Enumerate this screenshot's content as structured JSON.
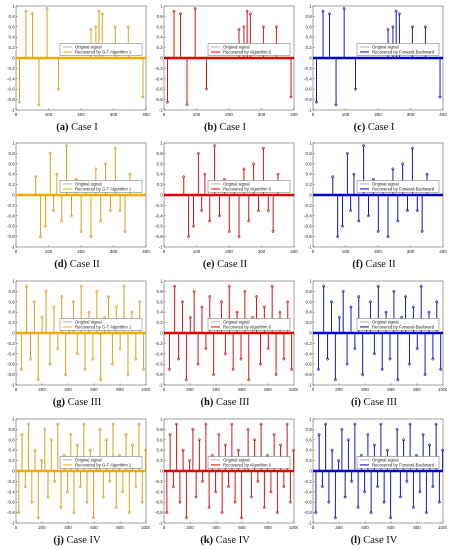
{
  "colors": {
    "original": "#808080",
    "case_colors": [
      "#f0ad00",
      "#e10000",
      "#0000cc"
    ]
  },
  "figure": {
    "columns": 3,
    "rows": 4,
    "legend_original": "Original signal",
    "legend_recovered": [
      "Recovered by G-T Algorithm 1",
      "Recovered by Algorithm 6",
      "Recovered by Forward-Backward"
    ]
  },
  "panels": [
    {
      "letter": "(a)",
      "case": "Case I"
    },
    {
      "letter": "(b)",
      "case": "Case I"
    },
    {
      "letter": "(c)",
      "case": "Case I"
    },
    {
      "letter": "(d)",
      "case": "Case II"
    },
    {
      "letter": "(e)",
      "case": "Case II"
    },
    {
      "letter": "(f)",
      "case": "Case II"
    },
    {
      "letter": "(g)",
      "case": "Case III"
    },
    {
      "letter": "(h)",
      "case": "Case III"
    },
    {
      "letter": "(i)",
      "case": "Case III"
    },
    {
      "letter": "(j)",
      "case": "Case IV"
    },
    {
      "letter": "(k)",
      "case": "Case IV"
    },
    {
      "letter": "(l)",
      "case": "Case IV"
    }
  ],
  "chart_data": [
    {
      "type": "stem",
      "row": 0,
      "xlim": [
        0,
        400
      ],
      "ylim": [
        -1,
        1
      ],
      "xticks": [
        0,
        100,
        200,
        300,
        400
      ],
      "yticks": [
        -1,
        -0.8,
        -0.6,
        -0.4,
        -0.2,
        0,
        0.2,
        0.4,
        0.6,
        0.8,
        1
      ],
      "ytick_labels": [
        "-1",
        "-0.8",
        "-0.6",
        "-0.4",
        "-0.2",
        "0",
        "0.2",
        "0.4",
        "0.6",
        "0.8",
        "1"
      ],
      "spikes": [
        [
          10,
          -0.85
        ],
        [
          30,
          0.9
        ],
        [
          50,
          0.85
        ],
        [
          70,
          -0.9
        ],
        [
          95,
          0.95
        ],
        [
          130,
          -0.6
        ],
        [
          230,
          0.55
        ],
        [
          245,
          0.6
        ],
        [
          255,
          0.9
        ],
        [
          265,
          0.85
        ],
        [
          305,
          0.6
        ],
        [
          345,
          0.6
        ],
        [
          390,
          -0.75
        ]
      ]
    },
    {
      "type": "stem",
      "row": 1,
      "xlim": [
        0,
        400
      ],
      "ylim": [
        -1,
        1
      ],
      "xticks": [
        0,
        100,
        200,
        300,
        400
      ],
      "yticks": [
        -1,
        -0.8,
        -0.6,
        -0.4,
        -0.2,
        0,
        0.2,
        0.4,
        0.6,
        0.8,
        1
      ],
      "ytick_labels": [
        "-1",
        "-0.8",
        "-0.6",
        "-0.4",
        "-0.2",
        "0",
        "0.2",
        "0.4",
        "0.6",
        "0.8",
        "1"
      ],
      "spikes": [
        [
          60,
          0.35
        ],
        [
          75,
          -0.8
        ],
        [
          90,
          -0.6
        ],
        [
          105,
          0.8
        ],
        [
          115,
          -0.3
        ],
        [
          125,
          0.4
        ],
        [
          140,
          -0.5
        ],
        [
          155,
          0.95
        ],
        [
          170,
          -0.4
        ],
        [
          185,
          0.3
        ],
        [
          200,
          -0.7
        ],
        [
          215,
          0.2
        ],
        [
          230,
          -0.8
        ],
        [
          245,
          0.5
        ],
        [
          260,
          -0.5
        ],
        [
          275,
          0.6
        ],
        [
          290,
          -0.3
        ],
        [
          305,
          0.9
        ],
        [
          320,
          -0.3
        ],
        [
          335,
          -0.7
        ],
        [
          350,
          0.4
        ]
      ]
    },
    {
      "type": "stem",
      "row": 2,
      "xlim": [
        0,
        1000
      ],
      "ylim": [
        -1,
        1
      ],
      "xticks": [
        0,
        200,
        400,
        600,
        800,
        1000
      ],
      "yticks": [
        -1,
        -0.8,
        -0.6,
        -0.4,
        -0.2,
        0,
        0.2,
        0.4,
        0.6,
        0.8,
        1
      ],
      "ytick_labels": [
        "-1",
        "-0.8",
        "-0.6",
        "-0.4",
        "-0.2",
        "0",
        "0.2",
        "0.4",
        "0.6",
        "0.8",
        "1"
      ],
      "spikes": [
        [
          40,
          -0.7
        ],
        [
          80,
          0.9
        ],
        [
          110,
          -0.5
        ],
        [
          140,
          0.6
        ],
        [
          170,
          -0.9
        ],
        [
          200,
          0.3
        ],
        [
          230,
          0.8
        ],
        [
          260,
          -0.6
        ],
        [
          290,
          0.5
        ],
        [
          320,
          -0.3
        ],
        [
          350,
          0.7
        ],
        [
          380,
          -0.8
        ],
        [
          410,
          0.2
        ],
        [
          440,
          0.6
        ],
        [
          470,
          -0.4
        ],
        [
          500,
          0.9
        ],
        [
          530,
          -0.7
        ],
        [
          560,
          0.4
        ],
        [
          590,
          -0.5
        ],
        [
          620,
          0.8
        ],
        [
          650,
          -0.9
        ],
        [
          680,
          0.3
        ],
        [
          710,
          0.7
        ],
        [
          740,
          -0.6
        ],
        [
          770,
          0.5
        ],
        [
          800,
          -0.3
        ],
        [
          830,
          0.9
        ],
        [
          860,
          -0.8
        ],
        [
          890,
          0.4
        ],
        [
          920,
          -0.5
        ],
        [
          950,
          0.6
        ],
        [
          980,
          -0.7
        ]
      ]
    },
    {
      "type": "stem",
      "row": 3,
      "xlim": [
        0,
        1000
      ],
      "ylim": [
        -1,
        1
      ],
      "xticks": [
        0,
        200,
        400,
        600,
        800,
        1000
      ],
      "yticks": [
        -1,
        -0.8,
        -0.6,
        -0.4,
        -0.2,
        0,
        0.2,
        0.4,
        0.6,
        0.8,
        1
      ],
      "ytick_labels": [
        "-1",
        "-0.8",
        "-0.6",
        "-0.4",
        "-0.2",
        "0",
        "0.2",
        "0.4",
        "0.6",
        "0.8",
        "1"
      ],
      "spikes": [
        [
          20,
          -0.8
        ],
        [
          45,
          0.7
        ],
        [
          70,
          -0.3
        ],
        [
          95,
          0.9
        ],
        [
          120,
          -0.6
        ],
        [
          145,
          0.4
        ],
        [
          170,
          -0.9
        ],
        [
          195,
          0.2
        ],
        [
          220,
          0.8
        ],
        [
          245,
          -0.5
        ],
        [
          270,
          0.6
        ],
        [
          295,
          -0.2
        ],
        [
          320,
          0.9
        ],
        [
          345,
          -0.7
        ],
        [
          370,
          0.3
        ],
        [
          395,
          -0.4
        ],
        [
          420,
          0.7
        ],
        [
          445,
          -0.8
        ],
        [
          470,
          0.5
        ],
        [
          495,
          -0.3
        ],
        [
          520,
          0.9
        ],
        [
          545,
          -0.6
        ],
        [
          570,
          0.4
        ],
        [
          595,
          -0.9
        ],
        [
          620,
          0.2
        ],
        [
          645,
          0.8
        ],
        [
          670,
          -0.5
        ],
        [
          695,
          0.6
        ],
        [
          720,
          -0.2
        ],
        [
          745,
          0.9
        ],
        [
          770,
          -0.7
        ],
        [
          795,
          0.3
        ],
        [
          820,
          -0.4
        ],
        [
          845,
          0.7
        ],
        [
          870,
          -0.8
        ],
        [
          895,
          0.5
        ],
        [
          920,
          -0.3
        ],
        [
          945,
          0.9
        ],
        [
          970,
          -0.6
        ],
        [
          995,
          0.4
        ]
      ]
    }
  ]
}
